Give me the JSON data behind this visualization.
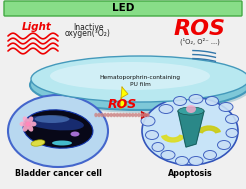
{
  "bg_color": "#f0f0f0",
  "led_color": "#88dd88",
  "led_edge": "#44aa44",
  "led_text": "LED",
  "led_text_color": "#000000",
  "film_outer_color": "#7ec8d8",
  "film_inner_color": "#b8e8f0",
  "film_top_color": "#d8f2f8",
  "film_edge_color": "#4499bb",
  "film_text1": "Hematoporphrin-containing",
  "film_text2": "PU film",
  "film_text_color": "#111111",
  "light_text": "Light",
  "light_color": "#ee0000",
  "inactive_text1": "Inactive",
  "inactive_text2": "oxygen(³O₂)",
  "inactive_color": "#222222",
  "ros_top_text": "ROS",
  "ros_top_color": "#ee0000",
  "ros_sub_text": "(¹O₂, O²⁻ ...)",
  "ros_sub_color": "#222222",
  "ros_mid_text": "ROS",
  "ros_mid_color": "#ee0000",
  "arrow_color": "#cc0000",
  "bolt_color": "#ffff00",
  "bolt_edge": "#ccaa00",
  "left_cell_bg": "#b8d8f0",
  "left_cell_edge": "#4466cc",
  "right_cell_bg": "#c8e4f8",
  "right_cell_edge": "#3355bb",
  "bladder_text": "Bladder cancer cell",
  "apoptosis_text": "Apoptosis",
  "bottom_text_color": "#000000",
  "wave_color": "#ee0000",
  "nucleus_color": "#080818",
  "nucleus_blue": "#2244aa",
  "organelle_pink": "#ffaacc",
  "organelle_yellow": "#dddd44",
  "organelle_cyan": "#44bbcc",
  "organelle_purple": "#cc88ff",
  "teal_cone": "#2a8888",
  "yellow_banana": "#dddd22"
}
